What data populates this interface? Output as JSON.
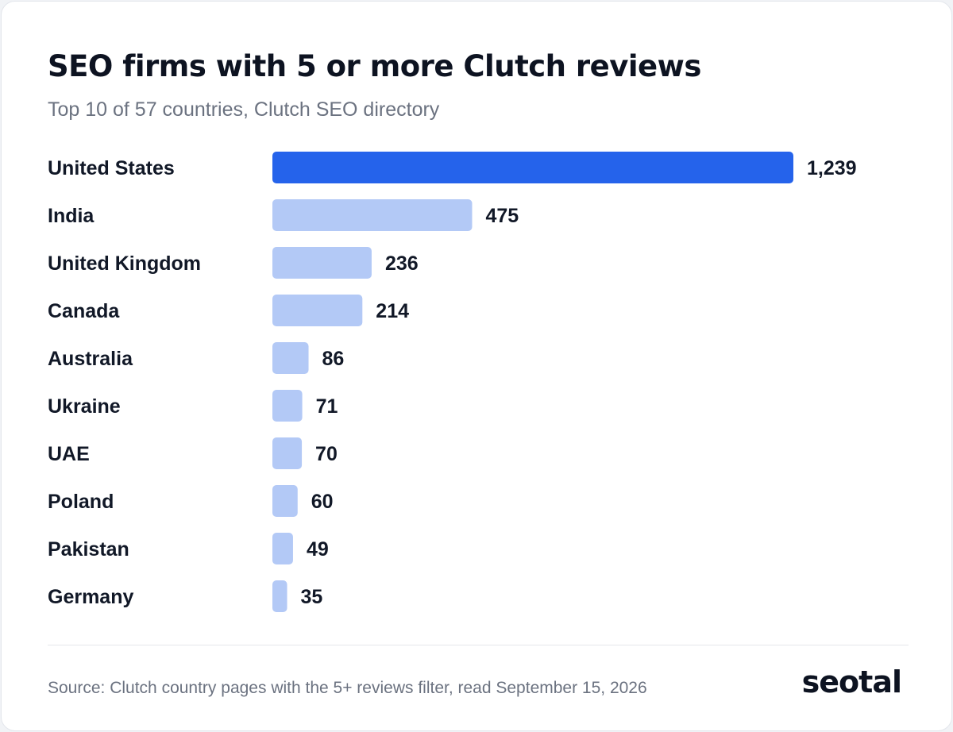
{
  "header": {
    "title": "SEO firms with 5 or more Clutch reviews",
    "subtitle": "Top 10 of 57 countries, Clutch SEO directory"
  },
  "footer": {
    "source": "Source: Clutch country pages with the 5+ reviews filter, read September 15, 2026",
    "logo_text": "seotal"
  },
  "colors": {
    "highlight_bar": "#2563eb",
    "default_bar": "#b3c9f6",
    "text": "#111827",
    "muted_text": "#6b7280"
  },
  "chart_data": {
    "type": "bar",
    "orientation": "horizontal",
    "title": "SEO firms with 5 or more Clutch reviews",
    "subtitle": "Top 10 of 57 countries, Clutch SEO directory",
    "categories": [
      "United States",
      "India",
      "United Kingdom",
      "Canada",
      "Australia",
      "Ukraine",
      "UAE",
      "Poland",
      "Pakistan",
      "Germany"
    ],
    "values": [
      1239,
      475,
      236,
      214,
      86,
      71,
      70,
      60,
      49,
      35
    ],
    "value_labels": [
      "1,239",
      "475",
      "236",
      "214",
      "86",
      "71",
      "70",
      "60",
      "49",
      "35"
    ],
    "highlighted": [
      "United States"
    ],
    "xlim": [
      0,
      1239
    ],
    "xlabel": "",
    "ylabel": "",
    "grid": false,
    "legend": "none"
  }
}
